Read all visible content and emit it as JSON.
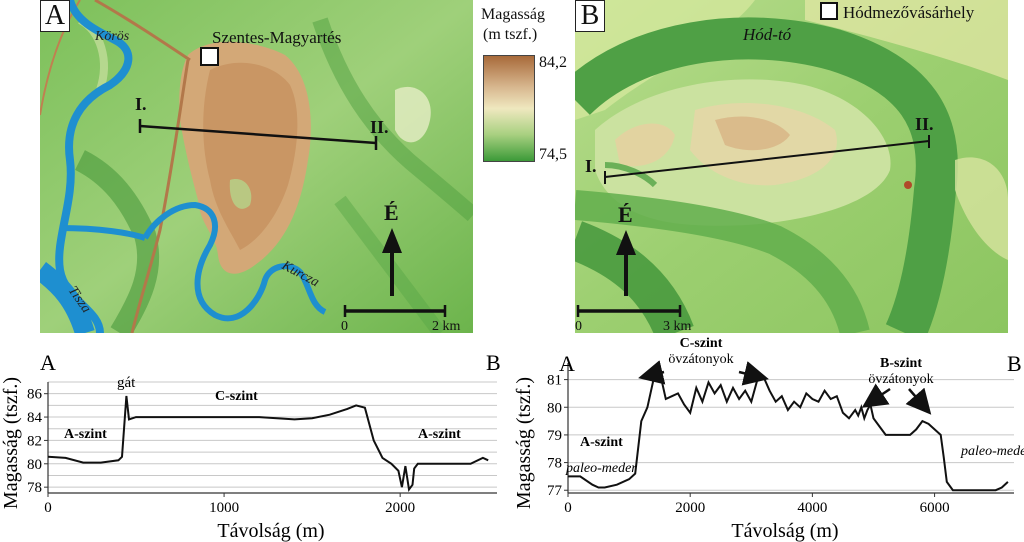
{
  "map_a": {
    "panel_letter": "A",
    "town": "Szentes-Magyartés",
    "rivers": [
      "Körös",
      "Tisza",
      "Kurcza"
    ],
    "profile_start": "I.",
    "profile_end": "II.",
    "north": "É",
    "scale_start": "0",
    "scale_end": "2 km"
  },
  "map_b": {
    "panel_letter": "B",
    "town": "Hódmezővásárhely",
    "lake": "Hód-tó",
    "profile_start": "I.",
    "profile_end": "II.",
    "north": "É",
    "scale_start": "0",
    "scale_end": "3 km"
  },
  "legend": {
    "title_line1": "Magasság",
    "title_line2": "(m tszf.)",
    "max": "84,2",
    "min": "74,5",
    "colors": [
      "#a86a3a",
      "#d8b890",
      "#e8e0b0",
      "#a8d080",
      "#3c9a38"
    ]
  },
  "chart_data": [
    {
      "type": "line",
      "panel_left": "A",
      "panel_right": "B",
      "xlabel": "Távolság (m)",
      "ylabel": "Magasság (tszf.)",
      "xlim": [
        0,
        2550
      ],
      "ylim": [
        77.5,
        87
      ],
      "xticks": [
        "0",
        "1000",
        "2000"
      ],
      "yticks": [
        "78",
        "80",
        "82",
        "84",
        "86"
      ],
      "annotations": [
        "gát",
        "C-szint",
        "A-szint",
        "A-szint"
      ],
      "series": [
        {
          "x": [
            0,
            100,
            200,
            300,
            400,
            420,
            445,
            460,
            500,
            600,
            800,
            1000,
            1200,
            1400,
            1500,
            1600,
            1700,
            1750,
            1800,
            1850,
            1900,
            1950,
            1990,
            2010,
            2030,
            2050,
            2070,
            2080,
            2100,
            2200,
            2300,
            2400,
            2470,
            2500
          ],
          "y": [
            80.6,
            80.5,
            80.1,
            80.1,
            80.3,
            80.6,
            85.8,
            83.8,
            84.0,
            84.0,
            84.0,
            84.0,
            84.0,
            83.8,
            83.9,
            84.2,
            84.7,
            85.0,
            84.8,
            82.0,
            80.5,
            80.0,
            79.4,
            78.0,
            79.8,
            77.8,
            78.2,
            79.6,
            80.0,
            80.0,
            80.0,
            80.0,
            80.5,
            80.3
          ]
        }
      ]
    },
    {
      "type": "line",
      "panel_left": "A",
      "panel_right": "B",
      "xlabel": "Távolság (m)",
      "ylabel": "Magasság (tszf.)",
      "xlim": [
        0,
        7300
      ],
      "ylim": [
        76.9,
        81.6
      ],
      "xticks": [
        "0",
        "2000",
        "4000",
        "6000"
      ],
      "yticks": [
        "77",
        "78",
        "79",
        "80",
        "81"
      ],
      "annotations": [
        "C-szint",
        "övzátonyok",
        "B-szint",
        "övzátonyok",
        "A-szint",
        "paleo-meder",
        "paleo-meder"
      ],
      "series": [
        {
          "x": [
            0,
            200,
            400,
            500,
            600,
            800,
            1000,
            1100,
            1200,
            1300,
            1400,
            1450,
            1500,
            1600,
            1700,
            1800,
            1900,
            2000,
            2100,
            2200,
            2300,
            2400,
            2500,
            2600,
            2700,
            2800,
            2900,
            3000,
            3100,
            3200,
            3300,
            3400,
            3500,
            3600,
            3700,
            3800,
            3900,
            4000,
            4100,
            4200,
            4300,
            4400,
            4500,
            4600,
            4700,
            4750,
            4800,
            4850,
            4900,
            4950,
            5000,
            5100,
            5200,
            5300,
            5400,
            5500,
            5600,
            5700,
            5800,
            5900,
            6000,
            6100,
            6150,
            6200,
            6300,
            6400,
            6600,
            6800,
            7000,
            7100,
            7200
          ],
          "y": [
            77.5,
            77.5,
            77.2,
            77.1,
            77.1,
            77.2,
            77.4,
            77.6,
            79.5,
            80.0,
            81.0,
            81.4,
            81.3,
            80.3,
            80.4,
            80.5,
            80.1,
            79.8,
            80.7,
            80.2,
            80.9,
            80.5,
            80.8,
            80.2,
            80.7,
            80.3,
            80.6,
            80.2,
            81.0,
            81.1,
            80.6,
            80.2,
            80.4,
            79.9,
            80.2,
            80.0,
            80.5,
            80.3,
            80.2,
            80.6,
            80.3,
            80.4,
            79.8,
            79.6,
            79.9,
            79.7,
            80.0,
            79.6,
            79.9,
            80.1,
            79.6,
            79.3,
            79.0,
            79.0,
            79.0,
            79.0,
            79.0,
            79.2,
            79.5,
            79.4,
            79.2,
            79.0,
            78.2,
            77.3,
            77.0,
            77.0,
            77.0,
            77.0,
            77.0,
            77.1,
            77.3
          ]
        }
      ]
    }
  ]
}
